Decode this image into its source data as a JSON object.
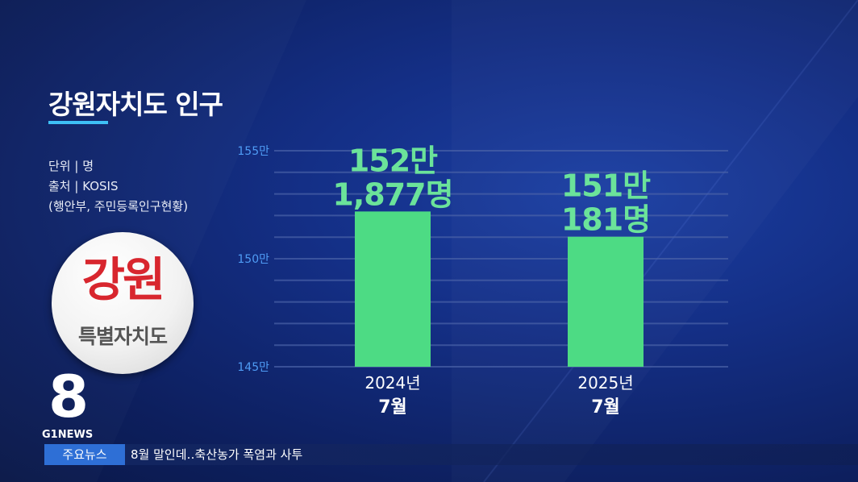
{
  "title": "강원자치도 인구",
  "meta": {
    "unit": "단위 | 명",
    "source": "출처 | KOSIS",
    "source_detail": "(행안부, 주민등록인구현황)"
  },
  "badge": {
    "main": "강원",
    "sub": "특별자치도"
  },
  "logo": {
    "number": "8",
    "text": "G1NEWS"
  },
  "ticker": {
    "label": "주요뉴스",
    "text": "8월 말인데‥축산농가 폭염과 사투"
  },
  "colors": {
    "bar": "#4ddb84",
    "label": "#6be39a",
    "tick": "#4f9cf5",
    "grid": "#4b63a8"
  },
  "chart_data": {
    "type": "bar",
    "categories": [
      {
        "line1": "2024년",
        "line2": "7월"
      },
      {
        "line1": "2025년",
        "line2": "7월"
      }
    ],
    "values": [
      1521877,
      1510181
    ],
    "value_labels": [
      {
        "line1": "152만",
        "line2": "1,877명"
      },
      {
        "line1": "151만",
        "line2": "181명"
      }
    ],
    "yticks": [
      {
        "value": 1450000,
        "label": "145만"
      },
      {
        "value": 1500000,
        "label": "150만"
      },
      {
        "value": 1550000,
        "label": "155만"
      }
    ],
    "ylim": [
      1450000,
      1550000
    ],
    "grid": true
  }
}
